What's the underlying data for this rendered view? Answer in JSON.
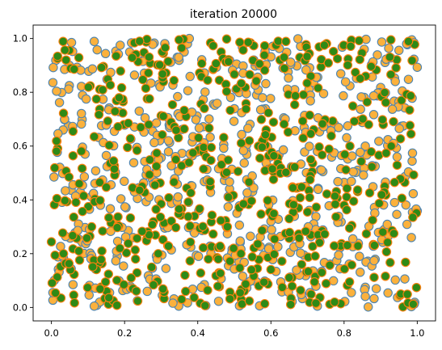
{
  "chart_data": {
    "type": "scatter",
    "title": "iteration 20000",
    "xlabel": "",
    "ylabel": "",
    "xlim": [
      -0.05,
      1.05
    ],
    "ylim": [
      -0.05,
      1.05
    ],
    "xticks": [
      0.0,
      0.2,
      0.4,
      0.6,
      0.8,
      1.0
    ],
    "yticks": [
      0.0,
      0.2,
      0.4,
      0.6,
      0.8,
      1.0
    ],
    "xtick_labels": [
      "0.0",
      "0.2",
      "0.4",
      "0.6",
      "0.8",
      "1.0"
    ],
    "ytick_labels": [
      "0.0",
      "0.2",
      "0.4",
      "0.6",
      "0.8",
      "1.0"
    ],
    "grid": false,
    "legend": "none",
    "point_count_per_series": 600,
    "point_generation": "approximately uniform random positions over the unit square; exact coordinates are not printed in the figure",
    "series": [
      {
        "marker_fill": "#fbb13c",
        "marker_edge": "#4d84b0",
        "values": []
      },
      {
        "marker_fill": "#2f8a16",
        "marker_edge": "#ff7f0e",
        "values": []
      }
    ]
  }
}
